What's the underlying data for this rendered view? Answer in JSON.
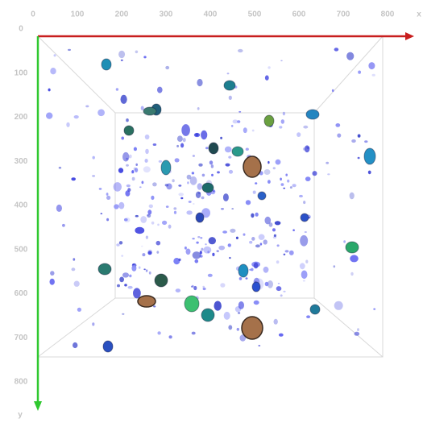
{
  "x_axis": {
    "label": "x",
    "ticks": [
      "0",
      "100",
      "200",
      "300",
      "400",
      "500",
      "600",
      "700",
      "800"
    ]
  },
  "y_axis": {
    "label": "y",
    "ticks": [
      "0",
      "100",
      "200",
      "300",
      "400",
      "500",
      "600",
      "700",
      "800"
    ]
  }
}
